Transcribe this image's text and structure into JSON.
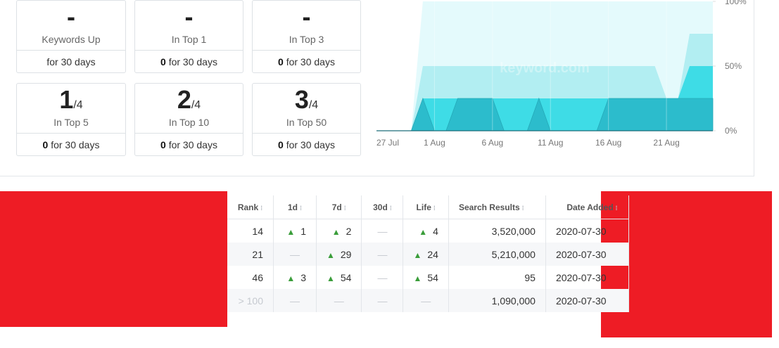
{
  "cards": [
    {
      "value": "-",
      "label": "Keywords Up",
      "footer": "for 30 days"
    },
    {
      "value": "-",
      "label": "In Top 1",
      "count": "0",
      "footer": "for 30 days"
    },
    {
      "value": "-",
      "label": "In Top 3",
      "count": "0",
      "footer": "for 30 days"
    },
    {
      "value": "1",
      "suffix": "/4",
      "label": "In Top 5",
      "count": "0",
      "footer": "for 30 days"
    },
    {
      "value": "2",
      "suffix": "/4",
      "label": "In Top 10",
      "count": "0",
      "footer": "for 30 days"
    },
    {
      "value": "3",
      "suffix": "/4",
      "label": "In Top 50",
      "count": "0",
      "footer": "for 30 days"
    }
  ],
  "chart_data": {
    "type": "area",
    "watermark": "keyword.com",
    "x": [
      0,
      1,
      2,
      3,
      4,
      5,
      6,
      7,
      8,
      9,
      10,
      11,
      12,
      13,
      14,
      15,
      16,
      17,
      18,
      19,
      20,
      21,
      22,
      23,
      24,
      25,
      26,
      27,
      28,
      29
    ],
    "xlim": [
      0,
      29
    ],
    "xticks": [
      {
        "value": 0,
        "label": "27 Jul"
      },
      {
        "value": 5,
        "label": "1 Aug"
      },
      {
        "value": 10,
        "label": "6 Aug"
      },
      {
        "value": 15,
        "label": "11 Aug"
      },
      {
        "value": 20,
        "label": "16 Aug"
      },
      {
        "value": 25,
        "label": "21 Aug"
      }
    ],
    "ylim": [
      0,
      100
    ],
    "yticks": [
      {
        "value": 0,
        "label": "0%"
      },
      {
        "value": 50,
        "label": "50%"
      },
      {
        "value": 100,
        "label": "100%"
      }
    ],
    "series": [
      {
        "color": "#e4fafc",
        "values": [
          0,
          0,
          0,
          0,
          100,
          100,
          100,
          100,
          100,
          100,
          100,
          100,
          100,
          100,
          100,
          100,
          100,
          100,
          100,
          100,
          100,
          100,
          100,
          100,
          100,
          100,
          100,
          100,
          100,
          100
        ]
      },
      {
        "color": "#b2eef2",
        "values": [
          0,
          0,
          0,
          0,
          50,
          50,
          50,
          50,
          50,
          50,
          50,
          50,
          50,
          50,
          50,
          50,
          50,
          50,
          50,
          50,
          50,
          50,
          50,
          50,
          50,
          25,
          25,
          75,
          75,
          75
        ]
      },
      {
        "color": "#3edce6",
        "values": [
          0,
          0,
          0,
          0,
          25,
          25,
          25,
          25,
          25,
          25,
          25,
          25,
          25,
          25,
          25,
          25,
          25,
          25,
          25,
          25,
          25,
          25,
          25,
          25,
          25,
          25,
          25,
          50,
          50,
          50
        ]
      },
      {
        "color": "#2cbccc",
        "values": [
          0,
          0,
          0,
          0,
          25,
          0,
          0,
          25,
          25,
          25,
          25,
          0,
          0,
          0,
          25,
          0,
          0,
          0,
          0,
          0,
          25,
          25,
          25,
          25,
          25,
          25,
          25,
          25,
          25,
          25
        ]
      }
    ]
  },
  "table": {
    "headers": [
      "Rank",
      "1d",
      "7d",
      "30d",
      "Life",
      "Search Results",
      "Date Added"
    ],
    "rows": [
      [
        {
          "text": "14"
        },
        {
          "text": "1",
          "arrow": "up"
        },
        {
          "text": "2",
          "arrow": "up"
        },
        {
          "text": "—",
          "muted": true
        },
        {
          "text": "4",
          "arrow": "up"
        },
        {
          "text": "3,520,000"
        },
        {
          "text": "2020-07-30"
        }
      ],
      [
        {
          "text": "21"
        },
        {
          "text": "—",
          "muted": true
        },
        {
          "text": "29",
          "arrow": "up"
        },
        {
          "text": "—",
          "muted": true
        },
        {
          "text": "24",
          "arrow": "up"
        },
        {
          "text": "5,210,000"
        },
        {
          "text": "2020-07-30"
        }
      ],
      [
        {
          "text": "46"
        },
        {
          "text": "3",
          "arrow": "up"
        },
        {
          "text": "54",
          "arrow": "up"
        },
        {
          "text": "—",
          "muted": true
        },
        {
          "text": "54",
          "arrow": "up"
        },
        {
          "text": "95"
        },
        {
          "text": "2020-07-30"
        }
      ],
      [
        {
          "text": "> 100",
          "muted": true
        },
        {
          "text": "—",
          "muted": true
        },
        {
          "text": "—",
          "muted": true
        },
        {
          "text": "—",
          "muted": true
        },
        {
          "text": "—",
          "muted": true
        },
        {
          "text": "1,090,000"
        },
        {
          "text": "2020-07-30"
        }
      ]
    ]
  }
}
